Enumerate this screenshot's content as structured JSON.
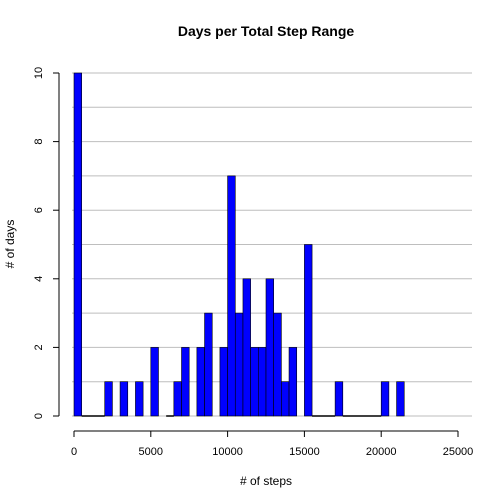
{
  "chart_data": {
    "type": "bar",
    "title": "Days per Total Step Range",
    "xlabel": "# of steps",
    "ylabel": "# of days",
    "bar_color": "#0000ff",
    "grid_color": "#bebebe",
    "grid": true,
    "bin_width": 500,
    "xlim": [
      0,
      25000
    ],
    "ylim": [
      0,
      10
    ],
    "x_ticks": [
      0,
      5000,
      10000,
      15000,
      20000,
      25000
    ],
    "y_ticks": [
      0,
      2,
      4,
      6,
      8,
      10
    ],
    "grid_lines_y": [
      0,
      1,
      2,
      3,
      4,
      5,
      6,
      7,
      8,
      9,
      10
    ],
    "bins": [
      {
        "x": 0,
        "count": 10
      },
      {
        "x": 2000,
        "count": 1
      },
      {
        "x": 3000,
        "count": 1
      },
      {
        "x": 4000,
        "count": 1
      },
      {
        "x": 5000,
        "count": 2
      },
      {
        "x": 6500,
        "count": 1
      },
      {
        "x": 7000,
        "count": 2
      },
      {
        "x": 8000,
        "count": 2
      },
      {
        "x": 8500,
        "count": 3
      },
      {
        "x": 9500,
        "count": 2
      },
      {
        "x": 10000,
        "count": 7
      },
      {
        "x": 10500,
        "count": 3
      },
      {
        "x": 11000,
        "count": 4
      },
      {
        "x": 11500,
        "count": 2
      },
      {
        "x": 12000,
        "count": 2
      },
      {
        "x": 12500,
        "count": 4
      },
      {
        "x": 13000,
        "count": 3
      },
      {
        "x": 13500,
        "count": 1
      },
      {
        "x": 14000,
        "count": 2
      },
      {
        "x": 15000,
        "count": 5
      },
      {
        "x": 17000,
        "count": 1
      },
      {
        "x": 20000,
        "count": 1
      },
      {
        "x": 21000,
        "count": 1
      }
    ],
    "zero_segments": [
      [
        500,
        2000
      ],
      [
        6000,
        6500
      ],
      [
        15500,
        17000
      ],
      [
        17500,
        20000
      ]
    ]
  }
}
